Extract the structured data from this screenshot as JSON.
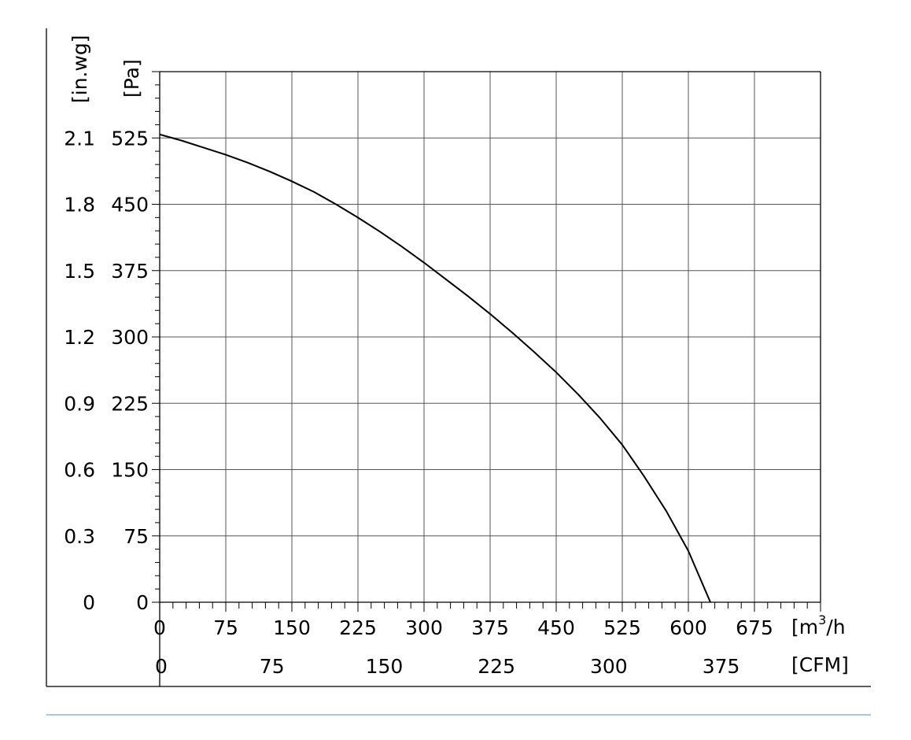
{
  "chart_data": {
    "type": "line",
    "title": "",
    "x_axis_primary": {
      "unit": "m",
      "unit_sup": "3",
      "unit_suffix": "/h",
      "unit_open": "[",
      "range": [
        0,
        750
      ],
      "ticks": [
        "0",
        "75",
        "150",
        "225",
        "300",
        "375",
        "450",
        "525",
        "600",
        "675"
      ]
    },
    "x_axis_secondary": {
      "unit": "[CFM]",
      "ticks": [
        {
          "label": "0",
          "value": 0
        },
        {
          "label": "75",
          "value": 75
        },
        {
          "label": "150",
          "value": 150
        },
        {
          "label": "225",
          "value": 225
        },
        {
          "label": "300",
          "value": 300
        },
        {
          "label": "375",
          "value": 375
        }
      ],
      "m3h_per_cfm": 1.699
    },
    "y_axis_primary": {
      "unit": "[Pa]",
      "range": [
        0,
        600
      ],
      "ticks": [
        "0",
        "75",
        "150",
        "225",
        "300",
        "375",
        "450",
        "525"
      ]
    },
    "y_axis_secondary": {
      "unit": "[in.wg]",
      "ticks": [
        "0",
        "0.3",
        "0.6",
        "0.9",
        "1.2",
        "1.5",
        "1.8",
        "2.1"
      ]
    },
    "grid": true,
    "series": [
      {
        "x": [
          0,
          25,
          50,
          75,
          100,
          125,
          150,
          175,
          200,
          225,
          250,
          275,
          300,
          325,
          350,
          375,
          400,
          425,
          450,
          475,
          500,
          525,
          550,
          575,
          600,
          625
        ],
        "y": [
          529,
          522,
          514,
          506,
          497,
          487,
          476,
          464,
          450,
          435,
          419,
          402,
          384,
          365,
          346,
          326,
          305,
          283,
          260,
          235,
          208,
          178,
          142,
          103,
          58,
          0
        ]
      }
    ],
    "colors": {
      "grid": "#555555",
      "curve": "#000000",
      "divider": "#4a90d9"
    }
  }
}
